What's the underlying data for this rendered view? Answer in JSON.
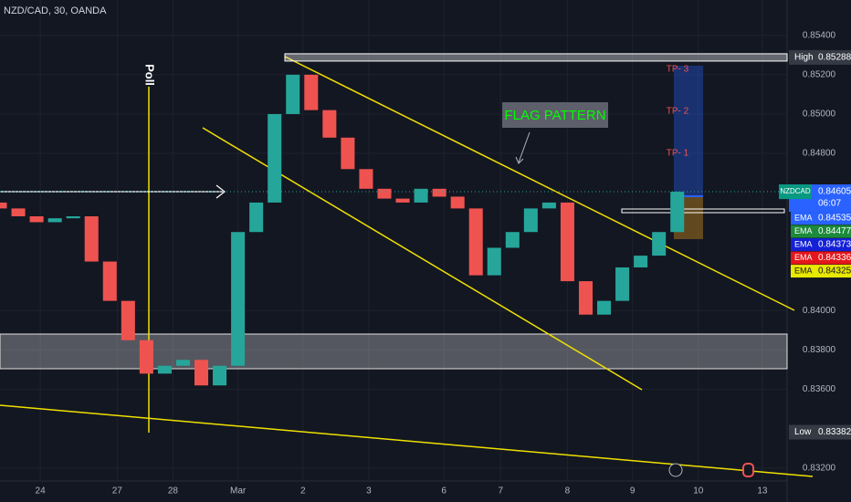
{
  "chart_data": {
    "type": "candlestick",
    "title": "NZD/CAD, 30, OANDA",
    "x": [
      0,
      4,
      8,
      12,
      16,
      20,
      24,
      28,
      32,
      36,
      40,
      44,
      48,
      52,
      56,
      60,
      64,
      68,
      72,
      76,
      80,
      84,
      88,
      92,
      96,
      100,
      104,
      108,
      112,
      116,
      120,
      124,
      128,
      132,
      136,
      140,
      144,
      148
    ],
    "open": [
      0.8455,
      0.8452,
      0.8448,
      0.8445,
      0.8447,
      0.8448,
      0.8425,
      0.8405,
      0.8385,
      0.8368,
      0.8372,
      0.8375,
      0.8362,
      0.8372,
      0.844,
      0.8455,
      0.85,
      0.852,
      0.8502,
      0.8488,
      0.8472,
      0.8462,
      0.8457,
      0.8455,
      0.8462,
      0.8458,
      0.8452,
      0.8418,
      0.8432,
      0.844,
      0.8452,
      0.8455,
      0.8415,
      0.8398,
      0.8405,
      0.8422,
      0.8428,
      0.844
    ],
    "high": {
      "name": "High",
      "value": 0.85288,
      "label": "0.85288"
    },
    "low": {
      "name": "Low",
      "value": 0.83382,
      "label": "0.83382"
    },
    "close": [
      0.8452,
      0.8448,
      0.8445,
      0.8447,
      0.8448,
      0.8425,
      0.8405,
      0.8385,
      0.8368,
      0.8372,
      0.8375,
      0.8362,
      0.8372,
      0.844,
      0.8455,
      0.85,
      0.852,
      0.8502,
      0.8488,
      0.8472,
      0.8462,
      0.8457,
      0.8455,
      0.8462,
      0.8458,
      0.8452,
      0.8418,
      0.8432,
      0.844,
      0.8452,
      0.8455,
      0.8415,
      0.8398,
      0.8405,
      0.8422,
      0.8428,
      0.844,
      0.84605
    ],
    "up_color": "#26a69a",
    "down_color": "#ef5350",
    "xlim": [
      0,
      172
    ],
    "xticks": [
      {
        "value": 8.8,
        "label": "24"
      },
      {
        "value": 25.6,
        "label": "27"
      },
      {
        "value": 37.8,
        "label": "28"
      },
      {
        "value": 52,
        "label": "Mar"
      },
      {
        "value": 66.2,
        "label": "2"
      },
      {
        "value": 80.6,
        "label": "3"
      },
      {
        "value": 97,
        "label": "6"
      },
      {
        "value": 109.4,
        "label": "7"
      },
      {
        "value": 124,
        "label": "8"
      },
      {
        "value": 138.2,
        "label": "9"
      },
      {
        "value": 152.6,
        "label": "10"
      },
      {
        "value": 166.6,
        "label": "13"
      }
    ],
    "ylim": [
      0.8312,
      0.8558
    ],
    "yticks": [
      {
        "value": 0.854,
        "label": "0.85400"
      },
      {
        "value": 0.852,
        "label": "0.85200"
      },
      {
        "value": 0.85,
        "label": "0.85000"
      },
      {
        "value": 0.848,
        "label": "0.84800"
      },
      {
        "value": 0.84,
        "label": "0.84000"
      },
      {
        "value": 0.838,
        "label": "0.83800"
      },
      {
        "value": 0.836,
        "label": "0.83600"
      },
      {
        "value": 0.832,
        "label": "0.83200"
      }
    ],
    "grid": true,
    "symbol": "NZDCAD",
    "last_price": {
      "value": 0.84605,
      "label": "0.84605"
    },
    "countdown": "06:07",
    "ema": [
      {
        "name": "EMA",
        "value": 0.84535,
        "label": "0.84535",
        "color": "#2962ff"
      },
      {
        "name": "EMA",
        "value": 0.84477,
        "label": "0.84477",
        "color": "#1b8a3a"
      },
      {
        "name": "EMA",
        "value": 0.84373,
        "label": "0.84373",
        "color": "#1320d6"
      },
      {
        "name": "EMA",
        "value": 0.84336,
        "label": "0.84336",
        "color": "#e5161b"
      },
      {
        "name": "EMA",
        "value": 0.84325,
        "label": "0.84325",
        "color": "#e8e800"
      }
    ],
    "annotations": {
      "flag": "FLAG PATTERN",
      "poll": "Poll",
      "tp1": "TP- 1",
      "tp2": "TP- 2",
      "tp3": "TP- 3"
    }
  }
}
